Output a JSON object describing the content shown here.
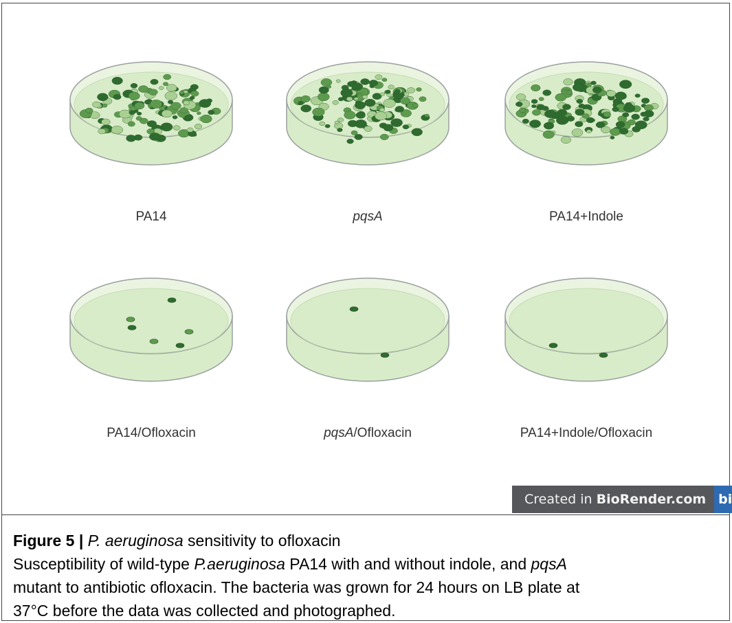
{
  "figure": {
    "plates": [
      {
        "label": "PA14",
        "label_italic": "",
        "label_rest": "",
        "dense": true
      },
      {
        "label": "",
        "label_italic": "pqsA",
        "label_rest": "",
        "dense": true
      },
      {
        "label": "PA14+Indole",
        "label_italic": "",
        "label_rest": "",
        "dense": true
      },
      {
        "label": "PA14/Ofloxacin",
        "label_italic": "",
        "label_rest": "",
        "dense": false,
        "colonies": 6
      },
      {
        "label": "",
        "label_italic": "pqsA",
        "label_rest": "/Ofloxacin",
        "dense": false,
        "colonies": 2
      },
      {
        "label": "PA14+Indole/Ofloxacin",
        "label_italic": "",
        "label_rest": "",
        "dense": false,
        "colonies": 2
      }
    ],
    "badge": {
      "prefix": "Created in ",
      "brand": "BioRender.com",
      "logo": "bio"
    }
  },
  "caption": {
    "title_bold": "Figure 5 |",
    "title_italic": " P. aeruginosa",
    "title_rest": " sensitivity to ofloxacin",
    "line2_a": "Susceptibility of wild-type ",
    "line2_italic": "P.aeruginosa",
    "line2_b": " PA14 with and without indole, and ",
    "line2_italic2": "pqsA",
    "line3": "mutant to antibiotic ofloxacin. The bacteria was grown for 24 hours on LB plate at",
    "line4": "37°C before the data was collected and photographed."
  },
  "colors": {
    "agar": "#d9ecc9",
    "rim": "#eaf4e0",
    "outline": "#9aa0a0",
    "colony_dark": "#2f6b2f",
    "colony_mid": "#5e9a4e",
    "colony_light": "#a9cf93",
    "badge_bg": "#55575b",
    "badge_logo": "#2e6ab1"
  }
}
